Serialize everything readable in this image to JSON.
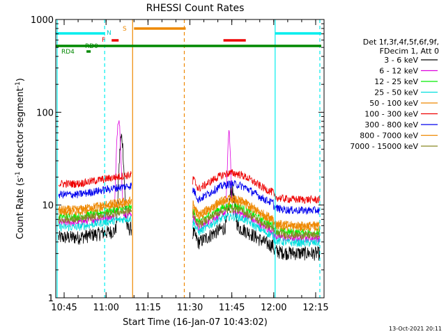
{
  "chart_data": {
    "type": "line",
    "title": "RHESSI Count Rates",
    "xlabel": "Start Time (16-Jan-07 10:43:02)",
    "ylabel_main": "Count Rate (s",
    "ylabel_sup1": "-1",
    "ylabel_mid": " detector segment",
    "ylabel_sup2": "-1",
    "ylabel_end": ")",
    "x_ticks": [
      "10:45",
      "11:00",
      "11:15",
      "11:30",
      "11:45",
      "12:00",
      "12:15"
    ],
    "x_tick_minutes": [
      105,
      120,
      135,
      150,
      165,
      180,
      195
    ],
    "xlim_minutes": [
      102,
      198
    ],
    "y_log": true,
    "ylim": [
      1,
      1000
    ],
    "y_ticks": [
      "1",
      "10",
      "100",
      "1000"
    ],
    "y_tick_values": [
      1,
      10,
      100,
      1000
    ],
    "legend_header": [
      "Det 1f,3f,4f,5f,6f,9f,",
      "FDecim 1, Att 0"
    ],
    "series": [
      {
        "name": "3 - 6 keV",
        "color": "#000000",
        "base": 4.5
      },
      {
        "name": "6 - 12 keV",
        "color": "#dd00dd",
        "base": 6.5
      },
      {
        "name": "12 - 25 keV",
        "color": "#00ee00",
        "base": 7.5
      },
      {
        "name": "25 - 50 keV",
        "color": "#00dddd",
        "base": 5.8
      },
      {
        "name": "50 - 100 keV",
        "color": "#ee8800",
        "base": 9.0
      },
      {
        "name": "100 - 300 keV",
        "color": "#ee0000",
        "base": 17.0
      },
      {
        "name": "300 - 800 keV",
        "color": "#0000ee",
        "base": 13.0
      },
      {
        "name": "800 - 7000 keV",
        "color": "#ee8800",
        "base": 8.5
      },
      {
        "name": "7000 - 15000 keV",
        "color": "#888822",
        "base": 7.0
      }
    ],
    "flags": [
      {
        "label": "N",
        "color": "#00cccc"
      },
      {
        "label": "S",
        "color": "#ee8800"
      },
      {
        "label": "F",
        "color": "#ee0000"
      },
      {
        "label": "RD0",
        "color": "#008800"
      },
      {
        "label": "RD4",
        "color": "#008800"
      }
    ],
    "flag_bars": [
      {
        "color": "#00eeee",
        "x0": 102,
        "x1": 119.5,
        "level": "cyan"
      },
      {
        "color": "#00eeee",
        "x0": 180.5,
        "x1": 197,
        "level": "cyan"
      },
      {
        "color": "#ee8800",
        "x0": 130,
        "x1": 148.5,
        "level": "orange"
      },
      {
        "color": "#ee0000",
        "x0": 122,
        "x1": 124.5,
        "level": "red"
      },
      {
        "color": "#ee0000",
        "x0": 162,
        "x1": 170,
        "level": "red"
      },
      {
        "color": "#008800",
        "x0": 102,
        "x1": 197,
        "level": "green"
      },
      {
        "color": "#008800",
        "x0": 113,
        "x1": 114.5,
        "level": "green2"
      }
    ],
    "vlines": [
      {
        "x": 102.5,
        "color": "#00eeee",
        "style": "solid"
      },
      {
        "x": 119.5,
        "color": "#00eeee",
        "style": "dashed"
      },
      {
        "x": 180.5,
        "color": "#00eeee",
        "style": "solid"
      },
      {
        "x": 196.5,
        "color": "#00eeee",
        "style": "dashed"
      },
      {
        "x": 129.5,
        "color": "#ee8800",
        "style": "solid"
      },
      {
        "x": 148,
        "color": "#ee8800",
        "style": "dashed"
      }
    ],
    "footer": "13-Oct-2021 20:11"
  }
}
